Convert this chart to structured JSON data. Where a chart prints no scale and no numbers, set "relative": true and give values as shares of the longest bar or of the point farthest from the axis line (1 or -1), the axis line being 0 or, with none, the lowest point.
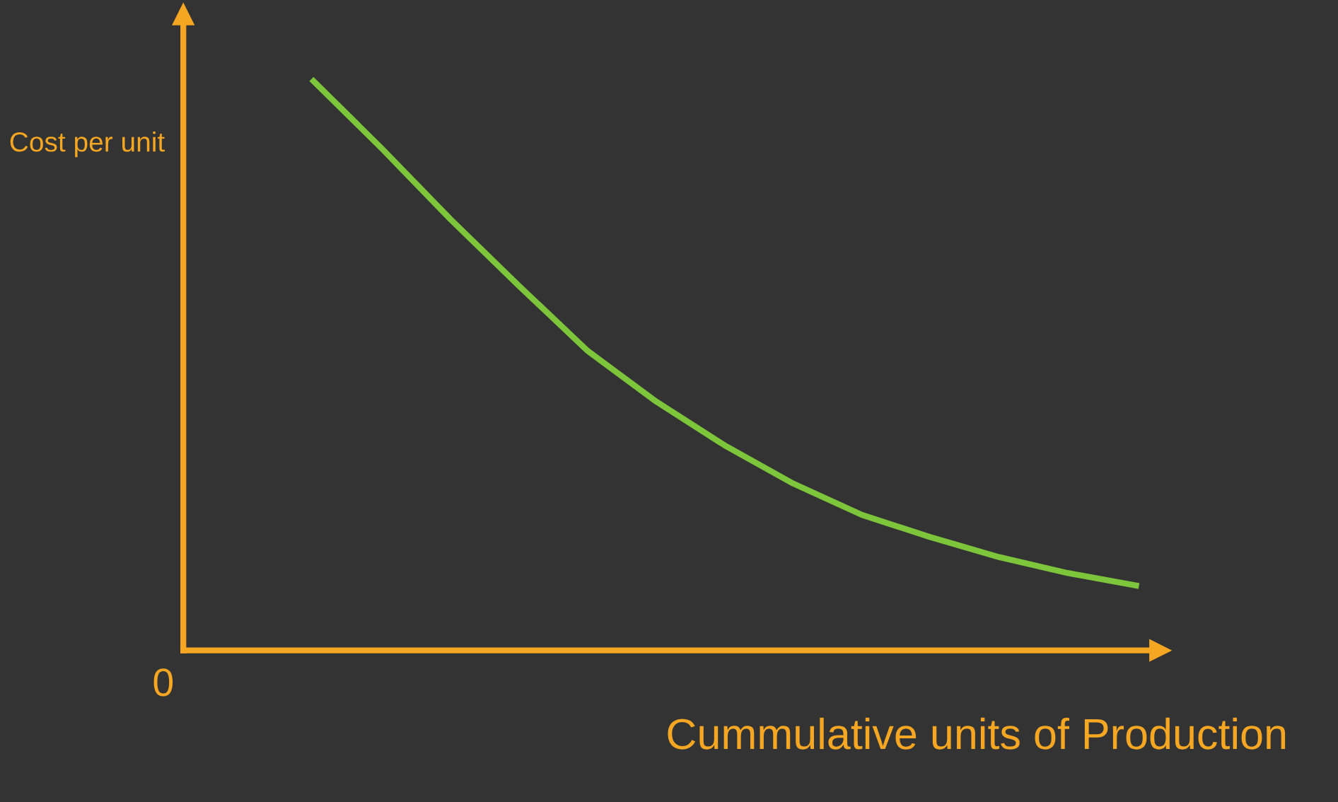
{
  "chart_data": {
    "type": "line",
    "relative": true,
    "ylabel": "Cost per unit",
    "xlabel": "Cummulative units of Production",
    "annotations": [
      "0"
    ],
    "categories": [
      null,
      null,
      null,
      null,
      null,
      null,
      null,
      null,
      null,
      null,
      null,
      null,
      null
    ],
    "series": [
      {
        "color": "#7dc63b",
        "values": [
          1,
          0.881,
          0.757,
          0.64,
          0.526,
          0.437,
          0.36,
          0.293,
          0.238,
          0.199,
          0.164,
          0.136,
          0.114
        ]
      }
    ],
    "marker": "none",
    "line_style": "solid",
    "legend": false
  }
}
